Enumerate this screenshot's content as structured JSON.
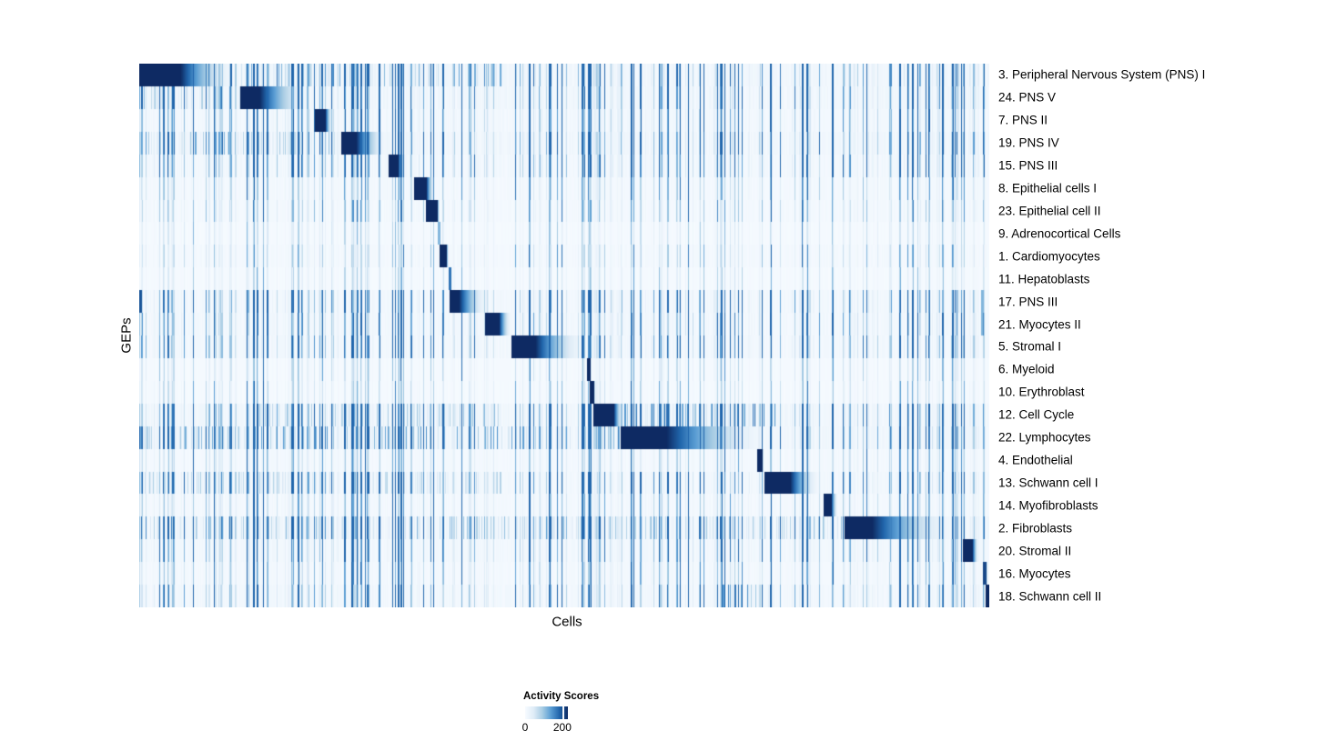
{
  "chart_data": {
    "type": "heatmap",
    "title": "",
    "xlabel": "Cells",
    "ylabel": "GEPs",
    "n_cells": 934,
    "n_rows": 24,
    "activity_range": [
      0,
      200
    ],
    "legend": {
      "title": "Activity Scores",
      "ticks": [
        {
          "label": "0",
          "frac": 0.0
        },
        {
          "label": "200",
          "frac": 0.87
        }
      ]
    },
    "colormap": {
      "name": "Blues",
      "stops": [
        {
          "pos": 0.0,
          "color": "#f7fbff"
        },
        {
          "pos": 0.2,
          "color": "#dfecf7"
        },
        {
          "pos": 0.4,
          "color": "#a9cde4"
        },
        {
          "pos": 0.6,
          "color": "#5b9ed4"
        },
        {
          "pos": 0.8,
          "color": "#2166ac"
        },
        {
          "pos": 1.0,
          "color": "#0e2a63"
        }
      ]
    },
    "seed": 42,
    "noise_bands": [
      {
        "from": 0.12,
        "to": 0.2,
        "boost": 1.6
      },
      {
        "from": 0.26,
        "to": 0.38,
        "boost": 1.4
      },
      {
        "from": 0.43,
        "to": 0.52,
        "boost": 1.2
      },
      {
        "from": 0.57,
        "to": 0.67,
        "boost": 1.5
      },
      {
        "from": 0.72,
        "to": 0.79,
        "boost": 1.9
      },
      {
        "from": 0.84,
        "to": 0.9,
        "boost": 1.2
      }
    ],
    "rows": [
      {
        "label": "3. Peripheral Nervous System (PNS) I",
        "start": 0,
        "dark": 45,
        "fade": 67,
        "peak": 1.0,
        "noise": 0.7,
        "bg": 0.05,
        "extras": [],
        "hot": [
          {
            "from": 112,
            "to": 400,
            "level": 0.3
          }
        ]
      },
      {
        "label": "24. PNS V",
        "start": 111,
        "dark": 21,
        "fade": 62,
        "peak": 1.0,
        "noise": 0.55,
        "bg": 0.05,
        "extras": [],
        "hot": [
          {
            "from": 0,
            "to": 111,
            "level": 0.3
          }
        ]
      },
      {
        "label": "7. PNS II",
        "start": 193,
        "dark": 11,
        "fade": 9,
        "peak": 1.0,
        "noise": 0.45,
        "bg": 0.04,
        "extras": [],
        "hot": []
      },
      {
        "label": "19. PNS IV",
        "start": 222,
        "dark": 16,
        "fade": 38,
        "peak": 1.0,
        "noise": 0.6,
        "bg": 0.05,
        "extras": [],
        "hot": [
          {
            "from": 0,
            "to": 222,
            "level": 0.3
          }
        ]
      },
      {
        "label": "15. PNS III",
        "start": 274,
        "dark": 10,
        "fade": 10,
        "peak": 1.0,
        "noise": 0.5,
        "bg": 0.04,
        "extras": [],
        "hot": []
      },
      {
        "label": "8. Epithelial cells I",
        "start": 302,
        "dark": 13,
        "fade": 10,
        "peak": 1.0,
        "noise": 0.25,
        "bg": 0.03,
        "extras": [],
        "hot": []
      },
      {
        "label": "23. Epithelial cell II",
        "start": 315,
        "dark": 12,
        "fade": 3,
        "peak": 1.0,
        "noise": 0.25,
        "bg": 0.03,
        "extras": [],
        "hot": []
      },
      {
        "label": "9. Adrenocortical Cells",
        "start": 328,
        "dark": 2,
        "fade": 1,
        "peak": 0.5,
        "noise": 0.15,
        "bg": 0.02,
        "extras": [],
        "hot": []
      },
      {
        "label": "1. Cardiomyocytes",
        "start": 330,
        "dark": 7,
        "fade": 3,
        "peak": 1.0,
        "noise": 0.2,
        "bg": 0.03,
        "extras": [],
        "hot": []
      },
      {
        "label": "11. Hepatoblasts",
        "start": 340,
        "dark": 2,
        "fade": 1,
        "peak": 0.75,
        "noise": 0.15,
        "bg": 0.02,
        "extras": [],
        "hot": []
      },
      {
        "label": "17. PNS III",
        "start": 341,
        "dark": 10,
        "fade": 35,
        "peak": 1.0,
        "noise": 0.5,
        "bg": 0.04,
        "extras": [
          {
            "cell": 0,
            "w": 3,
            "v": 0.85
          },
          {
            "cell": 925,
            "w": 3,
            "v": 0.5
          }
        ],
        "hot": []
      },
      {
        "label": "21. Myocytes II",
        "start": 380,
        "dark": 15,
        "fade": 15,
        "peak": 1.0,
        "noise": 0.45,
        "bg": 0.04,
        "extras": [
          {
            "cell": 925,
            "w": 3,
            "v": 0.5
          }
        ],
        "hot": []
      },
      {
        "label": "5. Stromal I",
        "start": 409,
        "dark": 26,
        "fade": 61,
        "peak": 1.0,
        "noise": 0.5,
        "bg": 0.04,
        "extras": [],
        "hot": []
      },
      {
        "label": "6. Myeloid",
        "start": 492,
        "dark": 3,
        "fade": 1,
        "peak": 1.0,
        "noise": 0.2,
        "bg": 0.02,
        "extras": [],
        "hot": []
      },
      {
        "label": "10. Erythroblast",
        "start": 495,
        "dark": 4,
        "fade": 2,
        "peak": 1.0,
        "noise": 0.2,
        "bg": 0.02,
        "extras": [],
        "hot": []
      },
      {
        "label": "12. Cell Cycle",
        "start": 499,
        "dark": 22,
        "fade": 12,
        "peak": 1.0,
        "noise": 0.55,
        "bg": 0.05,
        "extras": [],
        "hot": [
          {
            "from": 529,
            "to": 700,
            "level": 0.4
          },
          {
            "from": 120,
            "to": 400,
            "level": 0.25
          }
        ]
      },
      {
        "label": "22. Lymphocytes",
        "start": 529,
        "dark": 50,
        "fade": 123,
        "peak": 1.0,
        "noise": 0.6,
        "bg": 0.05,
        "extras": [],
        "hot": [
          {
            "from": 0,
            "to": 529,
            "level": 0.35
          }
        ]
      },
      {
        "label": "4. Endothelial",
        "start": 679,
        "dark": 5,
        "fade": 2,
        "peak": 1.0,
        "noise": 0.25,
        "bg": 0.03,
        "extras": [],
        "hot": []
      },
      {
        "label": "13. Schwann cell I",
        "start": 687,
        "dark": 28,
        "fade": 36,
        "peak": 1.0,
        "noise": 0.5,
        "bg": 0.04,
        "extras": [],
        "hot": [
          {
            "from": 0,
            "to": 400,
            "level": 0.2
          }
        ]
      },
      {
        "label": "14. Myofibroblasts",
        "start": 752,
        "dark": 8,
        "fade": 8,
        "peak": 1.0,
        "noise": 0.3,
        "bg": 0.03,
        "extras": [],
        "hot": []
      },
      {
        "label": "2. Fibroblasts",
        "start": 775,
        "dark": 30,
        "fade": 103,
        "peak": 1.0,
        "noise": 0.55,
        "bg": 0.05,
        "extras": [],
        "hot": [
          {
            "from": 0,
            "to": 775,
            "level": 0.25
          }
        ]
      },
      {
        "label": "20. Stromal II",
        "start": 905,
        "dark": 10,
        "fade": 8,
        "peak": 1.0,
        "noise": 0.4,
        "bg": 0.04,
        "extras": [],
        "hot": []
      },
      {
        "label": "16. Myocytes",
        "start": 927,
        "dark": 3,
        "fade": 2,
        "peak": 0.9,
        "noise": 0.3,
        "bg": 0.03,
        "extras": [],
        "hot": []
      },
      {
        "label": "18. Schwann cell II",
        "start": 930,
        "dark": 4,
        "fade": 0,
        "peak": 1.0,
        "noise": 0.4,
        "bg": 0.04,
        "extras": [],
        "hot": [
          {
            "from": 640,
            "to": 700,
            "level": 0.4
          }
        ]
      }
    ]
  }
}
